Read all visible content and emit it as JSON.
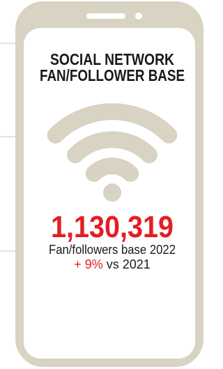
{
  "title_lines": [
    "SOCIAL NETWORK",
    "FAN/FOLLOWER BASE"
  ],
  "total": "1,130,319",
  "caption": "Fan/followers base 2022",
  "change": "+ 9%",
  "change_suffix": "vs 2021"
}
